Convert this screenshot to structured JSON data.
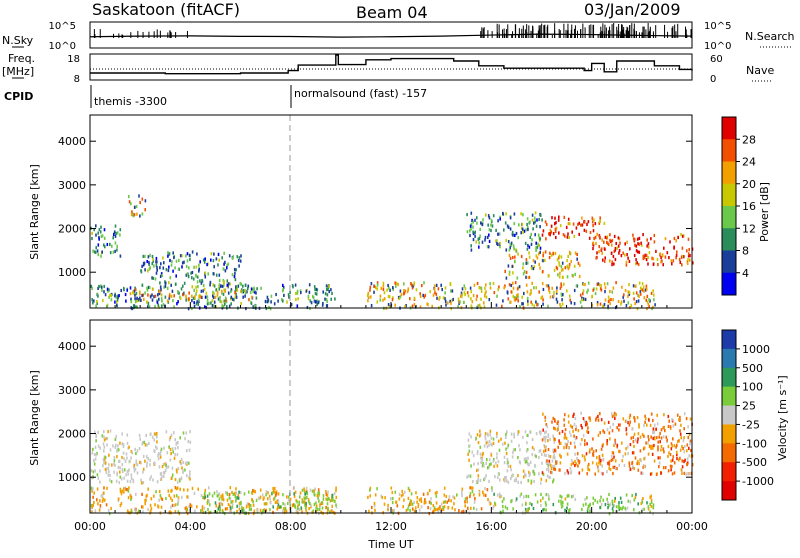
{
  "header": {
    "title": "Saskatoon (fitACF)",
    "beam": "Beam 04",
    "date": "03/Jan/2009"
  },
  "status_panels": {
    "nsky_label": "N.Sky",
    "nsearch_label": "N.Search",
    "freq_label_1": "Freq.",
    "freq_label_2": "[MHz]",
    "nave_label": "Nave",
    "cpid_label": "CPID",
    "noise_ticks_left": [
      "10^5",
      "10^0"
    ],
    "noise_ticks_right": [
      "10^5",
      "10^0"
    ],
    "freq_ticks": [
      "18",
      "8"
    ],
    "nave_ticks": [
      "60",
      "0"
    ],
    "cpid_segments": [
      {
        "label": "themis -3300",
        "start_hour": 0,
        "end_hour": 8
      },
      {
        "label": "normalsound (fast) -157",
        "start_hour": 8,
        "end_hour": 24
      }
    ],
    "freq_step": [
      {
        "t": 0,
        "f": 10.5
      },
      {
        "t": 3,
        "f": 10.2
      },
      {
        "t": 6,
        "f": 10.5
      },
      {
        "t": 7.9,
        "f": 11.5
      },
      {
        "t": 8.3,
        "f": 13.8
      },
      {
        "t": 9.8,
        "f": 18
      },
      {
        "t": 9.9,
        "f": 14
      },
      {
        "t": 11,
        "f": 16
      },
      {
        "t": 12,
        "f": 16.5
      },
      {
        "t": 14.5,
        "f": 15.5
      },
      {
        "t": 15.5,
        "f": 13.5
      },
      {
        "t": 16.5,
        "f": 12.5
      },
      {
        "t": 19.7,
        "f": 11.5
      },
      {
        "t": 20,
        "f": 14.5
      },
      {
        "t": 20.5,
        "f": 11
      },
      {
        "t": 21,
        "f": 15.5
      },
      {
        "t": 22.5,
        "f": 13.5
      },
      {
        "t": 23.5,
        "f": 12
      },
      {
        "t": 24,
        "f": 11.5
      }
    ],
    "noise_level": [
      {
        "t": 0,
        "v": 0.25
      },
      {
        "t": 2,
        "v": 0.3
      },
      {
        "t": 4,
        "v": 0.32
      },
      {
        "t": 6,
        "v": 0.28
      },
      {
        "t": 8,
        "v": 0.27
      },
      {
        "t": 10,
        "v": 0.22
      },
      {
        "t": 12,
        "v": 0.25
      },
      {
        "t": 14,
        "v": 0.3
      },
      {
        "t": 16,
        "v": 0.38
      },
      {
        "t": 18,
        "v": 0.45
      },
      {
        "t": 20,
        "v": 0.42
      },
      {
        "t": 22,
        "v": 0.35
      },
      {
        "t": 24,
        "v": 0.3
      }
    ]
  },
  "chart_data": [
    {
      "type": "heatmap",
      "panel": "power",
      "ylabel": "Slant Range [km]",
      "xlabel": "",
      "xlim": [
        0,
        24
      ],
      "ylim": [
        180,
        4600
      ],
      "yticks": [
        1000,
        2000,
        3000,
        4000
      ],
      "colorbar_label": "Power [dB]",
      "colorbar_ticks": [
        "28",
        "24",
        "20",
        "16",
        "12",
        "8",
        "4"
      ],
      "colorbar_colors": [
        "#e00000",
        "#f25000",
        "#f2a000",
        "#c8c800",
        "#6ac84a",
        "#2a8c5a",
        "#1b3e9a",
        "#0000f0"
      ],
      "bands": [
        {
          "t0": 0.0,
          "t1": 9.8,
          "r0": 200,
          "r1": 750,
          "level": "low"
        },
        {
          "t0": 1.5,
          "t1": 6.5,
          "r0": 350,
          "r1": 650,
          "level": "mid"
        },
        {
          "t0": 0.0,
          "t1": 1.2,
          "r0": 1400,
          "r1": 2100,
          "level": "low"
        },
        {
          "t0": 1.5,
          "t1": 2.2,
          "r0": 2300,
          "r1": 2800,
          "level": "mid"
        },
        {
          "t0": 2.0,
          "t1": 6.0,
          "r0": 700,
          "r1": 1500,
          "level": "low"
        },
        {
          "t0": 11.0,
          "t1": 22.5,
          "r0": 200,
          "r1": 800,
          "level": "mid"
        },
        {
          "t0": 15.0,
          "t1": 18.0,
          "r0": 1500,
          "r1": 2400,
          "level": "low"
        },
        {
          "t0": 18.0,
          "t1": 20.5,
          "r0": 1800,
          "r1": 2300,
          "level": "high"
        },
        {
          "t0": 20.0,
          "t1": 24.0,
          "r0": 1200,
          "r1": 1900,
          "level": "high"
        },
        {
          "t0": 16.5,
          "t1": 19.5,
          "r0": 900,
          "r1": 1500,
          "level": "mid"
        }
      ]
    },
    {
      "type": "heatmap",
      "panel": "velocity",
      "ylabel": "Slant Range [km]",
      "xlabel": "Time UT",
      "xlim": [
        0,
        24
      ],
      "ylim": [
        180,
        4600
      ],
      "yticks": [
        1000,
        2000,
        3000,
        4000
      ],
      "xticks": [
        "00:00",
        "04:00",
        "08:00",
        "12:00",
        "16:00",
        "20:00",
        "00:00"
      ],
      "colorbar_label": "Velocity [m s⁻¹]",
      "colorbar_ticks": [
        "1000",
        "500",
        "100",
        "25",
        "-25",
        "-100",
        "-500",
        "-1000"
      ],
      "colorbar_colors": [
        "#1c3aa8",
        "#2a7ab0",
        "#2e9a5a",
        "#7acc3a",
        "#c8c8c8",
        "#f2a000",
        "#f26a00",
        "#f02000",
        "#e00000"
      ],
      "bands": [
        {
          "t0": 0.0,
          "t1": 9.8,
          "r0": 200,
          "r1": 800,
          "level": "neg"
        },
        {
          "t0": 4.5,
          "t1": 9.8,
          "r0": 200,
          "r1": 700,
          "level": "pos"
        },
        {
          "t0": 0.0,
          "t1": 4.0,
          "r0": 900,
          "r1": 2100,
          "level": "zero"
        },
        {
          "t0": 11.0,
          "t1": 16.0,
          "r0": 200,
          "r1": 800,
          "level": "neg"
        },
        {
          "t0": 16.0,
          "t1": 22.5,
          "r0": 200,
          "r1": 650,
          "level": "pos"
        },
        {
          "t0": 15.0,
          "t1": 18.5,
          "r0": 900,
          "r1": 2100,
          "level": "zero"
        },
        {
          "t0": 18.0,
          "t1": 24.0,
          "r0": 1100,
          "r1": 2500,
          "level": "strong_neg"
        }
      ]
    }
  ]
}
